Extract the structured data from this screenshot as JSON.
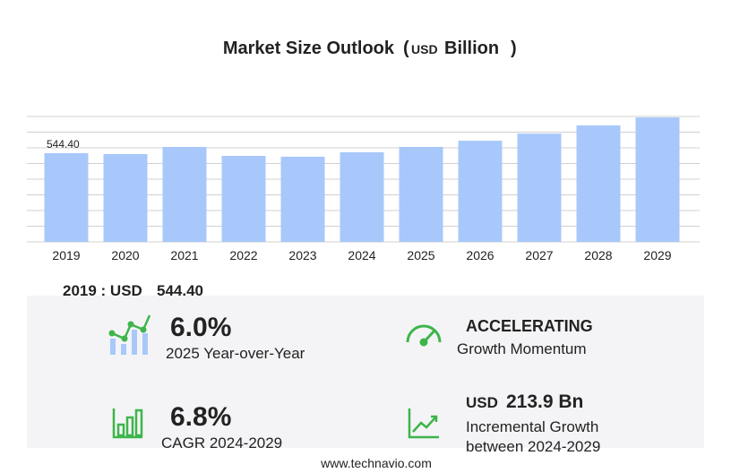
{
  "chart_data": {
    "type": "bar",
    "title": "Market Size Outlook",
    "unit_prefix": "USD",
    "unit": "Billion",
    "categories": [
      "2019",
      "2020",
      "2021",
      "2022",
      "2023",
      "2024",
      "2025",
      "2026",
      "2027",
      "2028",
      "2029"
    ],
    "values": [
      544.4,
      539,
      583,
      528,
      523,
      550,
      583,
      621,
      665,
      715,
      764
    ],
    "value_labels": [
      "544.40",
      null,
      null,
      null,
      null,
      null,
      null,
      null,
      null,
      null,
      null
    ],
    "color": "#a8c8fb",
    "ylim": [
      0,
      770
    ],
    "yticks": [
      0,
      96.25,
      192.5,
      288.75,
      385,
      481.25,
      577.5,
      673.75,
      770
    ],
    "grid": true
  },
  "summary": {
    "label": "2019 : USD"
  },
  "kpis": [
    {
      "value": "6.0%",
      "label": "2025 Year-over-Year"
    },
    {
      "value": "ACCELERATING",
      "label": "Growth Momentum"
    },
    {
      "value": "6.8%",
      "label": "CAGR 2024-2029"
    },
    {
      "unit": "USD",
      "value": "213.9 Bn",
      "label": "Incremental Growth",
      "label2": "between 2024-2029"
    }
  ],
  "footer": "www.technavio.com"
}
